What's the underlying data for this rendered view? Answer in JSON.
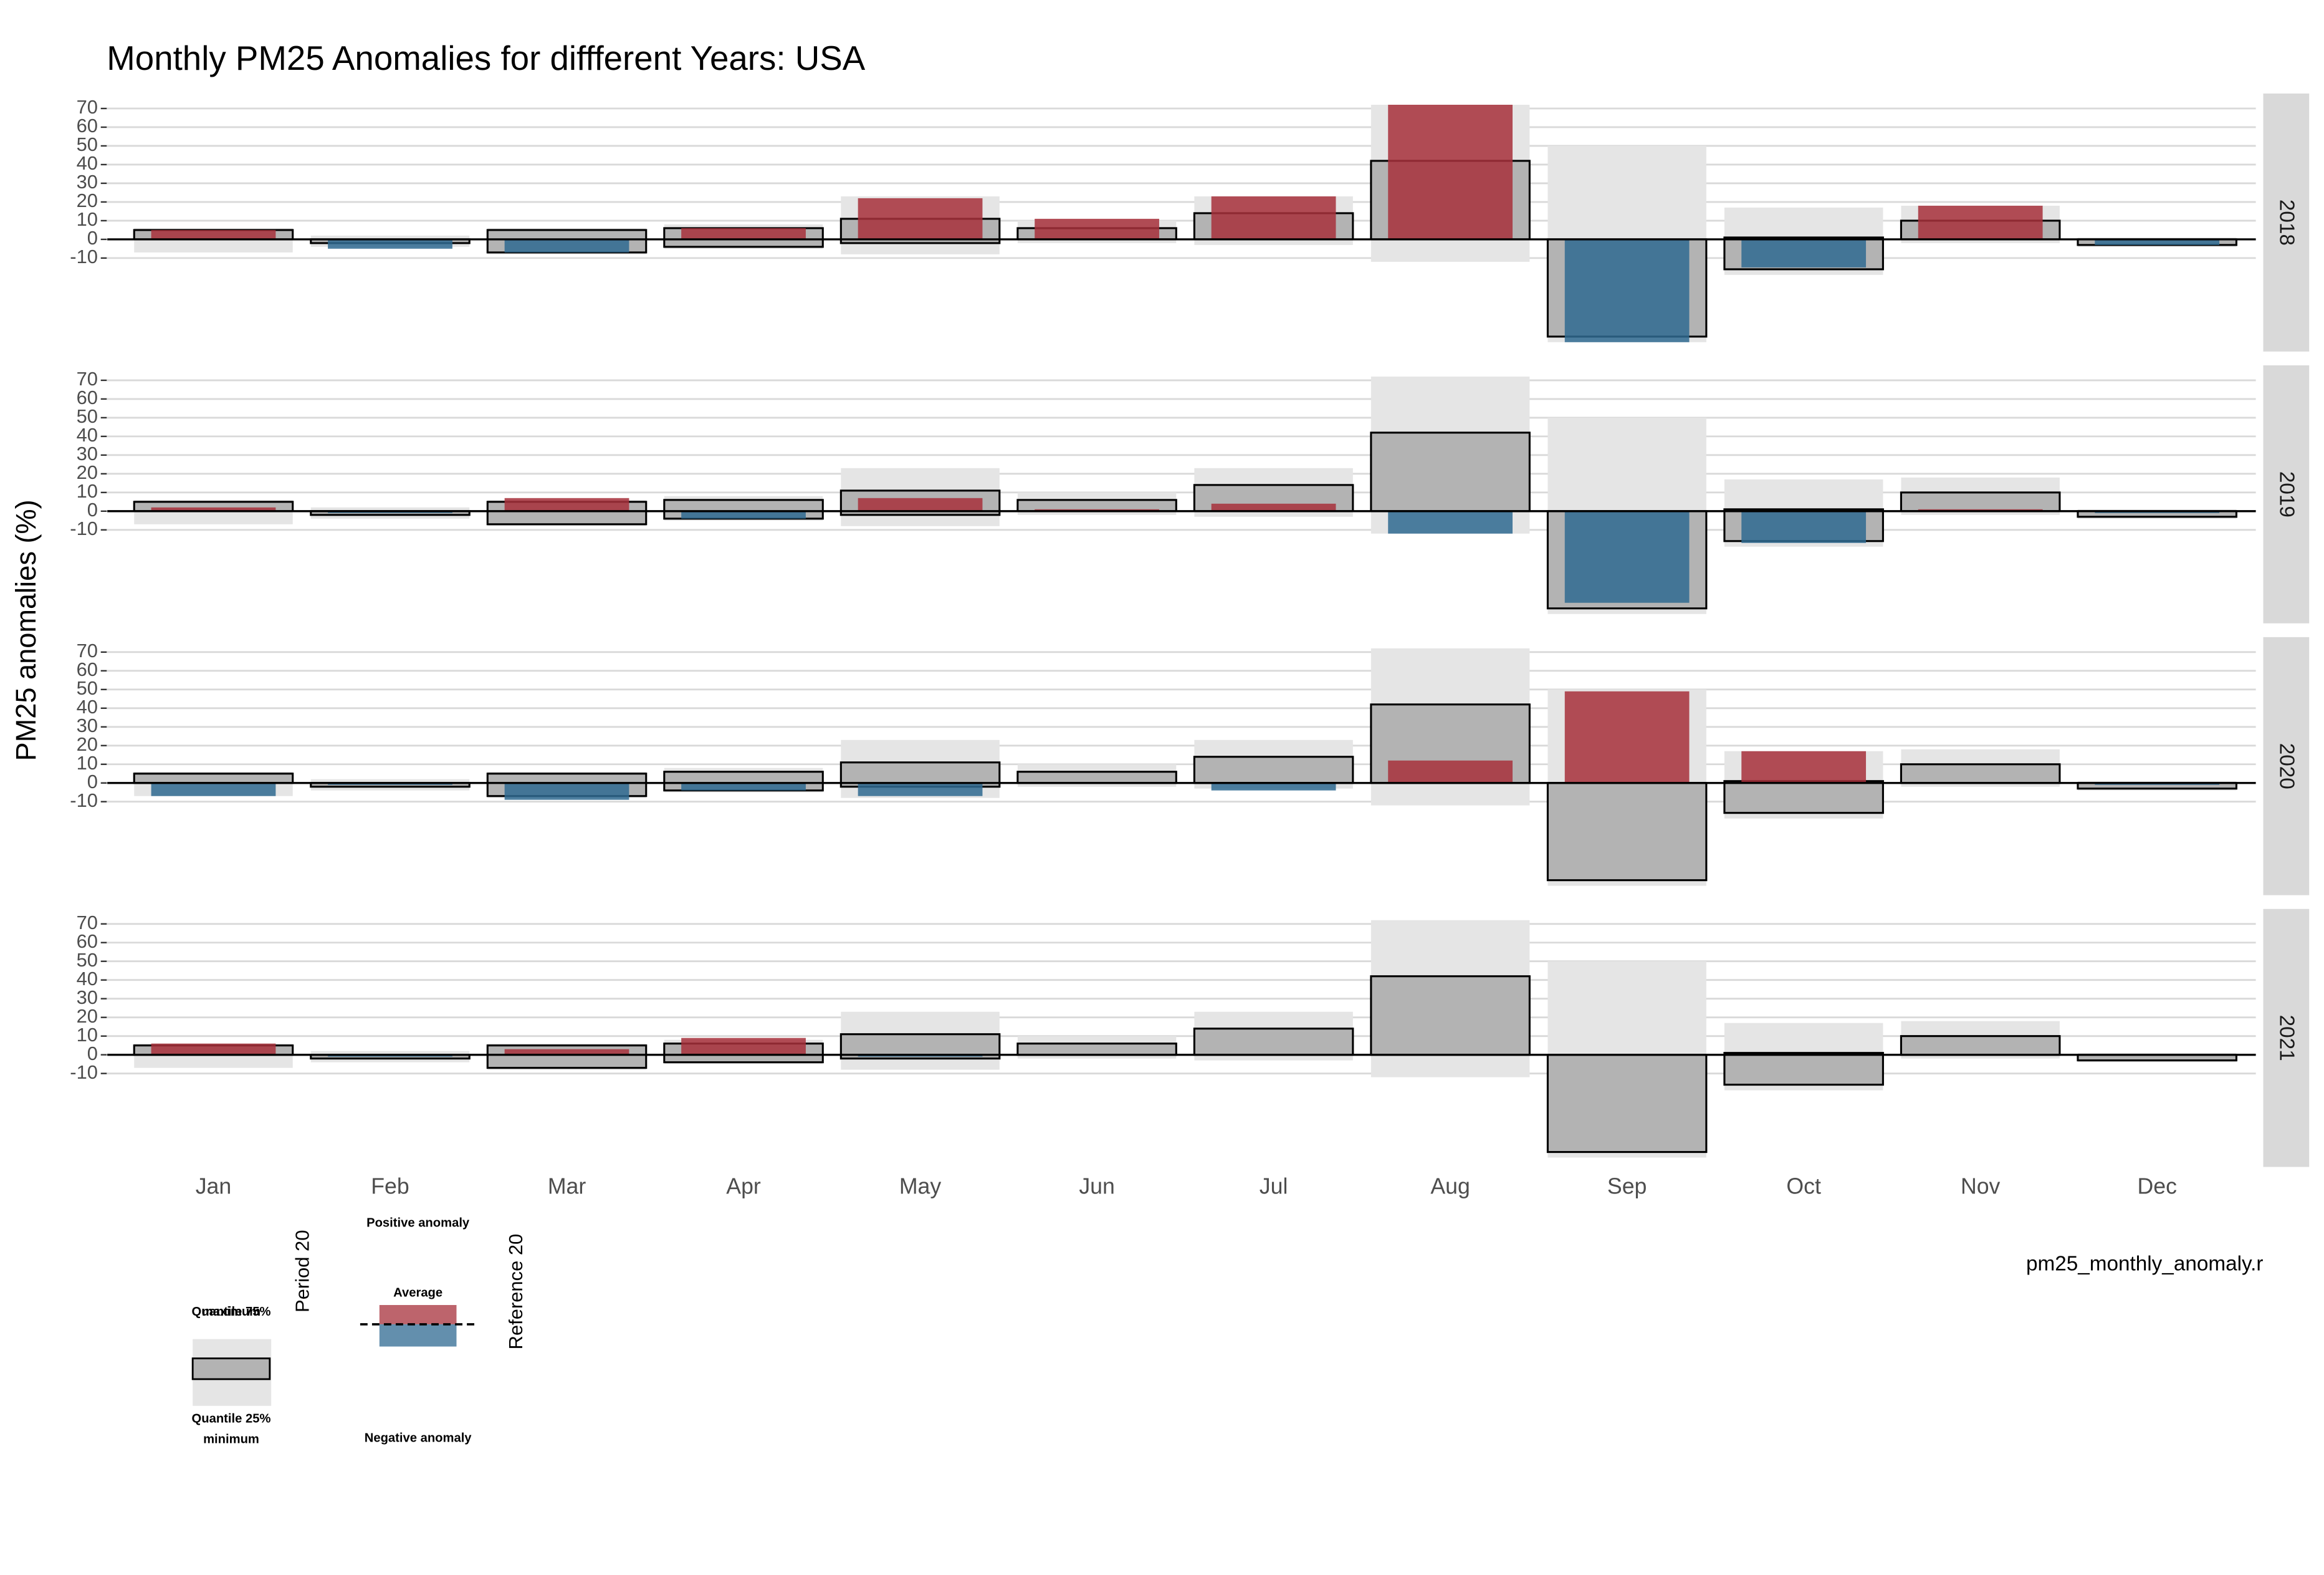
{
  "chart_data": {
    "type": "bar",
    "title": "Monthly PM25 Anomalies for diffferent Years: USA",
    "y_label": "PM25 anomalies (%)",
    "caption": "pm25_monthly_anomaly.r",
    "categories": [
      "Jan",
      "Feb",
      "Mar",
      "Apr",
      "May",
      "Jun",
      "Jul",
      "Aug",
      "Sep",
      "Oct",
      "Nov",
      "Dec"
    ],
    "reference": {
      "min": [
        -7,
        -4,
        -8,
        -5,
        -8,
        -2,
        -3,
        -12,
        -55,
        -19,
        -2,
        -4
      ],
      "q25": [
        0,
        -2,
        -7,
        -4,
        -2,
        0,
        0,
        0,
        -52,
        -16,
        0,
        -3
      ],
      "q75": [
        5,
        0,
        5,
        6,
        11,
        6,
        14,
        42,
        0,
        1,
        10,
        0
      ],
      "max": [
        6,
        2,
        6,
        8,
        23,
        10,
        23,
        72,
        50,
        17,
        18,
        1
      ]
    },
    "facets": [
      {
        "label": "2018",
        "values": [
          5,
          -5,
          -7,
          6,
          22,
          11,
          23,
          72,
          -55,
          -15,
          18,
          -3
        ]
      },
      {
        "label": "2019",
        "values": [
          2,
          -1,
          7,
          -4,
          7,
          1,
          4,
          -12,
          -49,
          -17,
          1,
          -1
        ]
      },
      {
        "label": "2020",
        "values": [
          -7,
          -1,
          -9,
          -4,
          -7,
          0,
          -4,
          12,
          49,
          17,
          0,
          -1
        ]
      },
      {
        "label": "2021",
        "values": [
          6,
          -1,
          3,
          9,
          -1,
          null,
          null,
          null,
          null,
          null,
          null,
          null
        ]
      }
    ],
    "positive_color": "#a7303b",
    "negative_color": "#2f6a91",
    "ylim": [
      -60,
      78
    ],
    "yticks": [
      -10,
      0,
      10,
      20,
      30,
      40,
      50,
      60,
      70
    ],
    "grid": true,
    "legend": {
      "period": "Period 20",
      "reference": "Reference 20",
      "quantile75": "Quantile 75%",
      "maximum": "maximum",
      "quantile25": "Quantile 25%",
      "minimum": "minimum",
      "positive": "Positive anomaly",
      "average": "Average",
      "negative": "Negative anomaly"
    }
  }
}
